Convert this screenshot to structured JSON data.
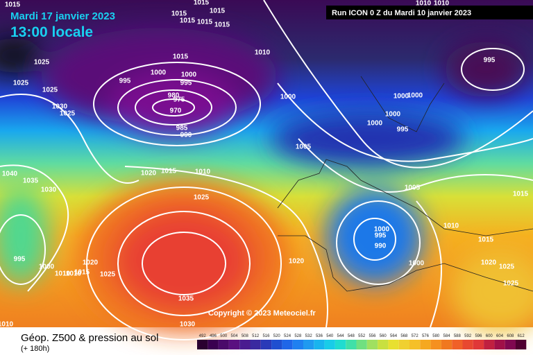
{
  "header": {
    "date": "Mardi 17 janvier 2023",
    "time": "13:00 locale",
    "run": "Run ICON 0 Z du Mardi 10 janvier 2023"
  },
  "copyright": "Copyright © 2023 Meteociel.fr",
  "footer": {
    "title": "Géop. Z500 & pression au sol",
    "lead": "(+ 180h)"
  },
  "colorbar": {
    "values": [
      492,
      496,
      500,
      504,
      508,
      512,
      516,
      520,
      524,
      528,
      532,
      536,
      540,
      544,
      548,
      552,
      556,
      560,
      564,
      568,
      572,
      576,
      580,
      584,
      588,
      592,
      596,
      600,
      604,
      608,
      612
    ],
    "colors": [
      "#2a0030",
      "#3a0050",
      "#4a0a6a",
      "#5a1080",
      "#4a1c90",
      "#3a2aa0",
      "#2a3ab8",
      "#1f4fd0",
      "#1f66e8",
      "#1f80f0",
      "#1f9af0",
      "#19b4ee",
      "#19cce8",
      "#20dcd0",
      "#40e0a8",
      "#70e080",
      "#a0e060",
      "#c8e040",
      "#e8e030",
      "#f0d030",
      "#f5c028",
      "#f5a820",
      "#f59020",
      "#f07820",
      "#f06028",
      "#e84830",
      "#e03838",
      "#c02040",
      "#a01048",
      "#800850",
      "#500030"
    ]
  },
  "isobars": [
    "1015",
    "1015",
    "1015",
    "1015",
    "1015",
    "1015",
    "1015",
    "1025",
    "1025",
    "1025",
    "1030",
    "1025",
    "995",
    "1000",
    "1015",
    "1000",
    "995",
    "980",
    "975",
    "970",
    "985",
    "990",
    "1010",
    "1000",
    "1000",
    "1000",
    "1000",
    "1000",
    "995",
    "995",
    "1010",
    "1010",
    "1005",
    "1020",
    "1015",
    "1010",
    "1040",
    "1035",
    "1030",
    "1025",
    "1005",
    "1015",
    "1000",
    "995",
    "990",
    "1010",
    "1015",
    "995",
    "1000",
    "1010",
    "1010",
    "1015",
    "1020",
    "1025",
    "1020",
    "1000",
    "1020",
    "1025",
    "1025",
    "1035",
    "1030",
    "1010"
  ]
}
